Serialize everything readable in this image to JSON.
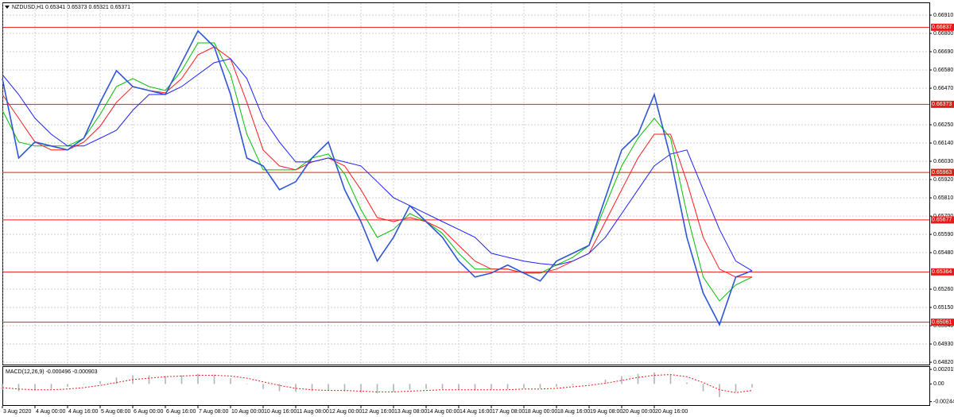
{
  "chart_data": [
    {
      "type": "line",
      "title": "NZDUSD,H1  0.65341 0.65373 0.65321 0.65371",
      "categories": [
        "3 Aug 2020",
        null,
        "4 Aug 00:00",
        null,
        "4 Aug 16:00",
        null,
        "5 Aug 08:00",
        null,
        "6 Aug 00:00",
        null,
        "6 Aug 16:00",
        null,
        "7 Aug 08:00",
        null,
        "10 Aug 00:00",
        null,
        "10 Aug 16:00",
        null,
        "11 Aug 08:00",
        null,
        "12 Aug 00:00",
        null,
        "12 Aug 16:00",
        null,
        "13 Aug 08:00",
        null,
        "14 Aug 00:00",
        null,
        "14 Aug 16:00",
        null,
        "17 Aug 08:00",
        null,
        "18 Aug 00:00",
        null,
        "18 Aug 16:00",
        null,
        "19 Aug 08:00",
        null,
        "20 Aug 00:00",
        null,
        "20 Aug 16:00",
        null,
        null,
        null,
        null,
        null,
        null
      ],
      "series": [
        {
          "color": "#2f55d4",
          "width": 1.6,
          "values": [
            0.66528,
            0.6605,
            0.66146,
            0.66122,
            0.66098,
            0.66169,
            0.66385,
            0.66576,
            0.6648,
            0.66456,
            0.66432,
            0.66624,
            0.66815,
            0.66719,
            0.66432,
            0.6605,
            0.66002,
            0.65859,
            0.65907,
            0.6605,
            0.66146,
            0.65859,
            0.65667,
            0.65429,
            0.65572,
            0.65763,
            0.65667,
            0.65572,
            0.65429,
            0.65333,
            0.65357,
            0.65405,
            0.65357,
            0.65309,
            0.65429,
            0.65476,
            0.65524,
            0.65811,
            0.66098,
            0.66193,
            0.66432,
            0.6605,
            0.65572,
            0.65237,
            0.65046,
            0.65333,
            0.65371
          ]
        },
        {
          "color": "#1e1eff",
          "width": 1,
          "values": [
            0.66552,
            0.66432,
            0.66289,
            0.66193,
            0.66122,
            0.66122,
            0.66169,
            0.66217,
            0.66337,
            0.66432,
            0.66432,
            0.6648,
            0.66552,
            0.66624,
            0.66647,
            0.66528,
            0.66289,
            0.66146,
            0.66026,
            0.66026,
            0.6605,
            0.66026,
            0.66002,
            0.65907,
            0.65811,
            0.65763,
            0.65715,
            0.65667,
            0.6562,
            0.65572,
            0.65476,
            0.65452,
            0.65429,
            0.65414,
            0.65405,
            0.65429,
            0.65476,
            0.65572,
            0.65715,
            0.65859,
            0.66002,
            0.66074,
            0.66098,
            0.65859,
            0.6562,
            0.65429,
            0.65371
          ]
        },
        {
          "color": "#ff1a1a",
          "width": 1,
          "values": [
            0.66432,
            0.66289,
            0.66146,
            0.66098,
            0.66098,
            0.66146,
            0.66241,
            0.66385,
            0.6648,
            0.66456,
            0.66442,
            0.66528,
            0.66671,
            0.66719,
            0.66647,
            0.66385,
            0.66098,
            0.66002,
            0.65978,
            0.66026,
            0.6605,
            0.66002,
            0.65859,
            0.65691,
            0.65667,
            0.65691,
            0.65667,
            0.6562,
            0.65524,
            0.65429,
            0.65381,
            0.65381,
            0.65357,
            0.65357,
            0.65381,
            0.65429,
            0.65476,
            0.65667,
            0.65859,
            0.6605,
            0.66193,
            0.66193,
            0.65907,
            0.65572,
            0.65381,
            0.65333,
            0.65333
          ]
        },
        {
          "color": "#00c000",
          "width": 1,
          "values": [
            0.66337,
            0.66146,
            0.66122,
            0.66122,
            0.66122,
            0.66169,
            0.66313,
            0.6648,
            0.66528,
            0.6648,
            0.66456,
            0.66576,
            0.66743,
            0.66743,
            0.66552,
            0.66193,
            0.65978,
            0.65978,
            0.65978,
            0.6605,
            0.66074,
            0.65954,
            0.65739,
            0.65572,
            0.6562,
            0.65715,
            0.65667,
            0.65596,
            0.65476,
            0.65381,
            0.65381,
            0.65381,
            0.65357,
            0.65357,
            0.65405,
            0.65452,
            0.65524,
            0.65763,
            0.66002,
            0.66169,
            0.66289,
            0.66169,
            0.65715,
            0.65333,
            0.65189,
            0.65285,
            0.65333
          ]
        }
      ],
      "levels": [
        {
          "value": 0.66837,
          "label": "0.66837"
        },
        {
          "value": 0.66373,
          "label": "0.66373"
        },
        {
          "value": 0.65963,
          "label": "0.65963"
        },
        {
          "value": 0.65677,
          "label": "0.65677"
        },
        {
          "value": 0.65364,
          "label": "0.65364"
        },
        {
          "value": 0.65061,
          "label": "0.65061"
        }
      ],
      "level_color": "#e41b1b",
      "ylim": [
        0.64806,
        0.66982
      ],
      "yticks": [
        {
          "value": 0.6691,
          "label": "0.66910"
        },
        {
          "value": 0.668,
          "label": "0.66800"
        },
        {
          "value": 0.6669,
          "label": "0.66690"
        },
        {
          "value": 0.6658,
          "label": "0.66580"
        },
        {
          "value": 0.6647,
          "label": "0.66470"
        },
        {
          "value": 0.6625,
          "label": "0.66250"
        },
        {
          "value": 0.6614,
          "label": "0.66140"
        },
        {
          "value": 0.6603,
          "label": "0.66030"
        },
        {
          "value": 0.6592,
          "label": "0.65920"
        },
        {
          "value": 0.6581,
          "label": "0.65810"
        },
        {
          "value": 0.657,
          "label": "0.65700"
        },
        {
          "value": 0.6559,
          "label": "0.65590"
        },
        {
          "value": 0.6548,
          "label": "0.65480"
        },
        {
          "value": 0.6526,
          "label": "0.65260"
        },
        {
          "value": 0.6515,
          "label": "0.65150"
        },
        {
          "value": 0.6504,
          "label": "0.65040"
        },
        {
          "value": 0.6493,
          "label": "0.64930"
        },
        {
          "value": 0.6482,
          "label": "0.64820"
        }
      ],
      "grid": true
    },
    {
      "type": "macd",
      "title": "MACD(12,26,9) -0.000496 -0.000903",
      "series": [
        {
          "kind": "bar",
          "color": "#b4b4b4",
          "values": [
            -0.0008,
            -0.001,
            -0.0009,
            -0.0007,
            -0.0004,
            -0.0001,
            0.0004,
            0.0009,
            0.0012,
            0.0012,
            0.0011,
            0.0012,
            0.0014,
            0.0013,
            0.0008,
            0.0,
            -0.0007,
            -0.001,
            -0.0011,
            -0.001,
            -0.0009,
            -0.001,
            -0.0012,
            -0.0013,
            -0.0011,
            -0.0008,
            -0.0007,
            -0.0007,
            -0.0008,
            -0.0009,
            -0.0008,
            -0.0007,
            -0.0006,
            -0.0006,
            -0.0004,
            -0.0002,
            0.0001,
            0.0006,
            0.0011,
            0.0014,
            0.0016,
            0.0013,
            0.0002,
            -0.001,
            -0.0018,
            -0.0011,
            -0.000496
          ]
        },
        {
          "kind": "line",
          "color": "#e41b1b",
          "dash": true,
          "values": [
            -0.0005,
            -0.0007,
            -0.0008,
            -0.0008,
            -0.0007,
            -0.0005,
            -0.0002,
            0.0002,
            0.0006,
            0.0008,
            0.001,
            0.0011,
            0.0012,
            0.0012,
            0.0011,
            0.0008,
            0.0003,
            -0.0002,
            -0.0006,
            -0.0008,
            -0.0009,
            -0.0009,
            -0.001,
            -0.0011,
            -0.0011,
            -0.001,
            -0.0009,
            -0.0008,
            -0.0008,
            -0.0008,
            -0.0008,
            -0.0008,
            -0.0007,
            -0.0007,
            -0.0006,
            -0.0004,
            -0.0002,
            0.0001,
            0.0005,
            0.0009,
            0.0012,
            0.0013,
            0.001,
            0.0002,
            -0.0008,
            -0.0012,
            -0.000903
          ]
        }
      ],
      "ylim": [
        -0.00292,
        0.00235
      ],
      "yticks": [
        0.002015,
        {
          "value": 0,
          "label": "0.00"
        },
        -0.00244
      ]
    }
  ]
}
